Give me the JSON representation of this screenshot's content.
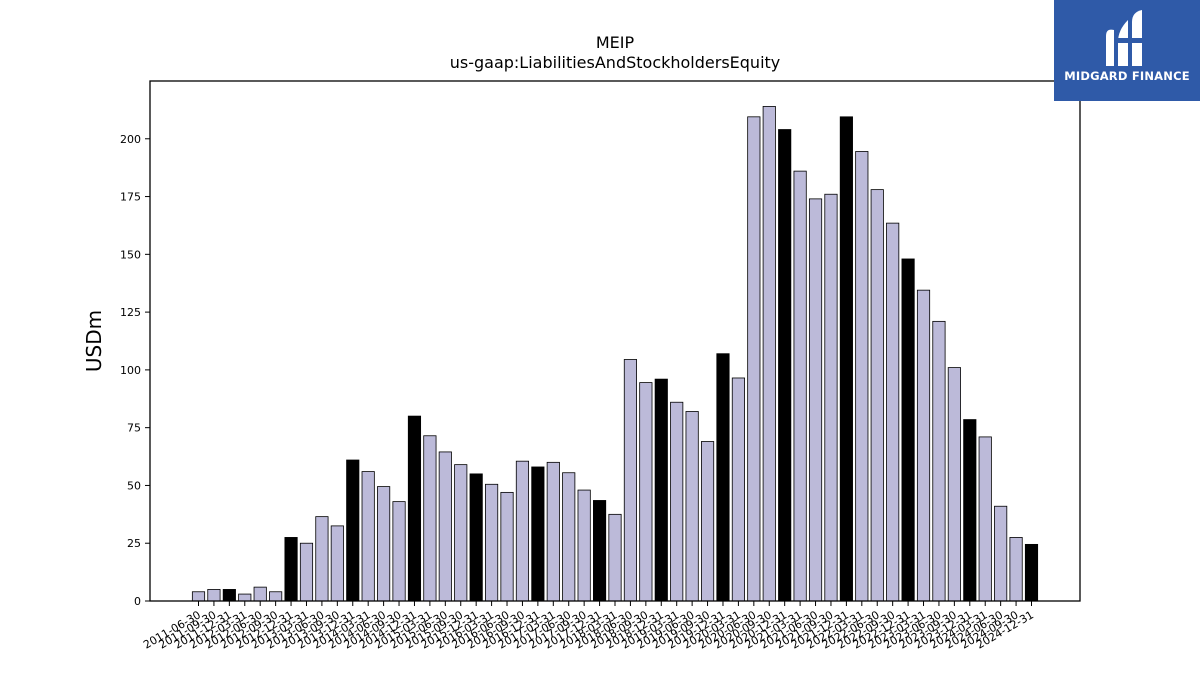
{
  "brand": {
    "name": "MIDGARD FINANCE",
    "icon": "midgard-logo-icon",
    "background": "#2f5aa8"
  },
  "chart_data": {
    "type": "bar",
    "title": "MEIP",
    "subtitle": "us-gaap:LiabilitiesAndStockholdersEquity",
    "xlabel": "",
    "ylabel": "USDm",
    "ylim": [
      0,
      225
    ],
    "yticks": [
      0,
      25,
      50,
      75,
      100,
      125,
      150,
      175,
      200
    ],
    "grid": false,
    "colors": {
      "quarter": "#bcbad9",
      "year_end": "#000000",
      "edge": "#000000"
    },
    "categories": [
      "2011-06-30",
      "2011-09-30",
      "2011-12-31",
      "2012-03-31",
      "2012-06-30",
      "2012-09-30",
      "2012-12-31",
      "2013-03-31",
      "2013-06-30",
      "2013-09-30",
      "2013-12-31",
      "2014-03-31",
      "2014-06-30",
      "2014-09-30",
      "2014-12-31",
      "2015-03-31",
      "2015-06-30",
      "2015-09-30",
      "2015-12-31",
      "2016-03-31",
      "2016-06-30",
      "2016-09-30",
      "2016-12-31",
      "2017-03-31",
      "2017-06-30",
      "2017-09-30",
      "2017-12-31",
      "2018-03-31",
      "2018-06-30",
      "2018-09-30",
      "2018-12-31",
      "2019-03-31",
      "2019-06-30",
      "2019-09-30",
      "2019-12-31",
      "2020-03-31",
      "2020-06-30",
      "2020-09-30",
      "2020-12-31",
      "2021-03-31",
      "2021-06-30",
      "2021-09-30",
      "2021-12-31",
      "2022-03-31",
      "2022-06-30",
      "2022-09-30",
      "2022-12-31",
      "2023-03-31",
      "2023-06-30",
      "2023-09-30",
      "2023-12-31",
      "2024-03-31",
      "2024-06-30",
      "2024-09-30",
      "2024-12-31"
    ],
    "values": [
      4,
      5,
      5,
      3,
      6,
      4,
      27.5,
      25,
      36.5,
      32.5,
      61,
      56,
      49.5,
      43,
      80,
      71.5,
      64.5,
      59,
      55,
      50.5,
      47,
      60.5,
      58,
      60,
      55.5,
      48,
      43.5,
      37.5,
      104.5,
      94.5,
      96,
      86,
      82,
      69,
      107,
      96.5,
      209.5,
      214,
      204,
      186,
      174,
      176,
      209.5,
      194.5,
      178,
      163.5,
      148,
      134.5,
      121,
      101,
      78.5,
      71,
      41,
      27.5,
      24.5
    ]
  }
}
